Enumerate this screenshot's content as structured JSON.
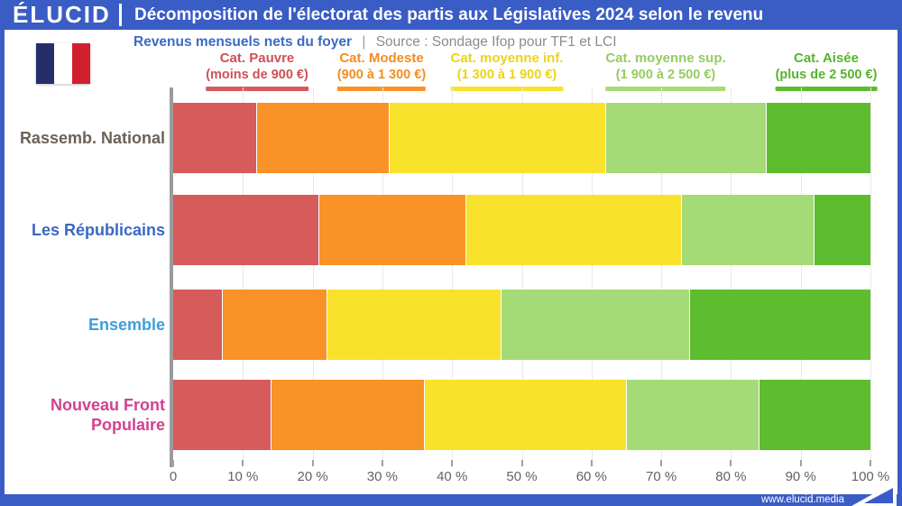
{
  "header": {
    "brand": "ÉLUCID",
    "title": "Décomposition de l'électorat des partis aux Législatives 2024 selon le revenu"
  },
  "subtitle": {
    "label": "Revenus mensuels nets du foyer",
    "separator": "|",
    "source": "Source : Sondage Ifop pour TF1 et LCI"
  },
  "footer": {
    "url": "www.elucid.media"
  },
  "colors": {
    "brand_blue": "#3a5cc5",
    "grid": "#e9e9e9",
    "axis": "#9b9b9b"
  },
  "chart_data": {
    "type": "bar",
    "stacked": true,
    "orientation": "horizontal",
    "title": "Décomposition de l'électorat des partis aux Législatives 2024 selon le revenu",
    "xlabel": "",
    "ylabel": "",
    "xlim": [
      0,
      100
    ],
    "grid": true,
    "legend_position": "top",
    "categories": [
      "Rassemb. National",
      "Les Républicains",
      "Ensemble",
      "Nouveau Front Populaire"
    ],
    "category_colors": [
      "#6b6256",
      "#3a68c3",
      "#3f9edb",
      "#d2418f"
    ],
    "series": [
      {
        "name": "Cat. Pauvre",
        "range": "(moins de 900 €)",
        "color": "#d65b5b",
        "text_color": "#d05055",
        "values": [
          12,
          21,
          7,
          14
        ]
      },
      {
        "name": "Cat. Modeste",
        "range": "(900 à 1 300 €)",
        "color": "#f99227",
        "text_color": "#f28d20",
        "values": [
          19,
          21,
          15,
          22
        ]
      },
      {
        "name": "Cat. moyenne inf.",
        "range": "(1 300 à 1 900 €)",
        "color": "#f8e22c",
        "text_color": "#ecd318",
        "values": [
          31,
          31,
          25,
          29
        ]
      },
      {
        "name": "Cat. moyenne sup.",
        "range": "(1 900 à 2 500 €)",
        "color": "#a5db77",
        "text_color": "#95cc61",
        "values": [
          23,
          19,
          27,
          19
        ]
      },
      {
        "name": "Cat. Aisée",
        "range": "(plus de 2 500 €)",
        "color": "#5ebc2f",
        "text_color": "#58b32c",
        "values": [
          15,
          8,
          26,
          16
        ]
      }
    ],
    "x_ticks": [
      "0",
      "10 %",
      "20 %",
      "30 %",
      "40 %",
      "50 %",
      "60 %",
      "70 %",
      "80 %",
      "90 %",
      "100 %"
    ]
  }
}
